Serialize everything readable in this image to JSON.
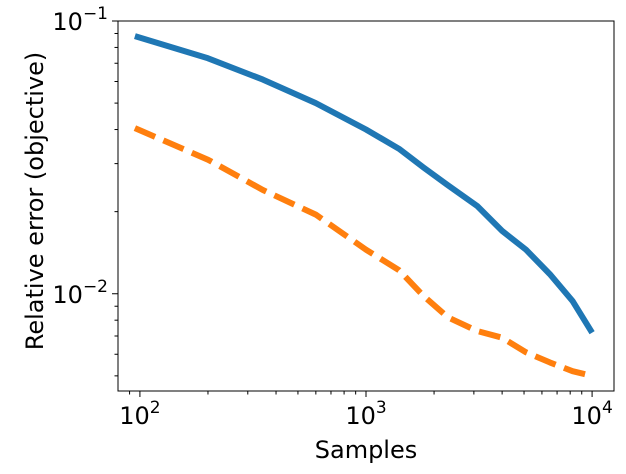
{
  "chart_data": {
    "type": "line",
    "title": "",
    "xlabel": "Samples",
    "ylabel": "Relative error (objective)",
    "xscale": "log",
    "yscale": "log",
    "xlim": [
      80,
      12500
    ],
    "ylim": [
      0.0044,
      0.1
    ],
    "grid": false,
    "legend": "none",
    "x_ticks": [
      {
        "base": "10",
        "exp": "2",
        "value": 100
      },
      {
        "base": "10",
        "exp": "3",
        "value": 1000
      },
      {
        "base": "10",
        "exp": "4",
        "value": 10000
      }
    ],
    "y_ticks": [
      {
        "base": "10",
        "exp": "−2",
        "value": 0.01
      },
      {
        "base": "10",
        "exp": "−1",
        "value": 0.1
      }
    ],
    "series": [
      {
        "color": "#1f77b4",
        "style": "solid",
        "x": [
          95,
          200,
          350,
          600,
          1000,
          1400,
          1800,
          2300,
          3100,
          4000,
          5100,
          6500,
          8200,
          10000
        ],
        "y": [
          0.088,
          0.073,
          0.061,
          0.05,
          0.04,
          0.034,
          0.029,
          0.025,
          0.021,
          0.017,
          0.0145,
          0.0118,
          0.0094,
          0.0072
        ]
      },
      {
        "color": "#ff7f0e",
        "style": "dashed",
        "x": [
          95,
          200,
          350,
          600,
          1000,
          1400,
          1800,
          2300,
          3100,
          4000,
          5100,
          6500,
          8200,
          10000
        ],
        "y": [
          0.0405,
          0.031,
          0.024,
          0.0195,
          0.0145,
          0.0122,
          0.0098,
          0.0082,
          0.0073,
          0.0069,
          0.0061,
          0.0056,
          0.0052,
          0.005
        ]
      }
    ]
  }
}
